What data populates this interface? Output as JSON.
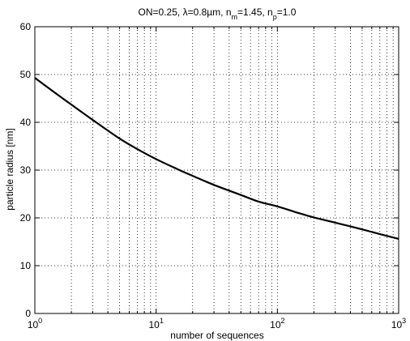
{
  "chart_data": {
    "type": "line",
    "title": {
      "parts": [
        {
          "text": "ON=0.25, "
        },
        {
          "text": "λ"
        },
        {
          "text": "=0.8µm, n"
        },
        {
          "text": "m",
          "sub": true
        },
        {
          "text": "=1.45, n"
        },
        {
          "text": "p",
          "sub": true
        },
        {
          "text": "=1.0"
        }
      ]
    },
    "xlabel": "number of sequences",
    "ylabel": "particle radius [nm]",
    "xscale": "log",
    "xlim": [
      1,
      1000
    ],
    "ylim": [
      0,
      60
    ],
    "grid": true,
    "x_ticks": [
      {
        "value": 1,
        "base": "10",
        "exp": "0"
      },
      {
        "value": 10,
        "base": "10",
        "exp": "1"
      },
      {
        "value": 100,
        "base": "10",
        "exp": "2"
      },
      {
        "value": 1000,
        "base": "10",
        "exp": "3"
      }
    ],
    "y_ticks": [
      0,
      10,
      20,
      30,
      40,
      50,
      60
    ],
    "series": [
      {
        "color": "#000000",
        "x": [
          1,
          1.5,
          2,
          3,
          5,
          7,
          10,
          15,
          20,
          30,
          50,
          70,
          100,
          150,
          200,
          300,
          500,
          700,
          1000
        ],
        "y": [
          49.3,
          46.0,
          43.7,
          40.5,
          36.6,
          34.4,
          32.3,
          30.2,
          28.8,
          26.9,
          24.8,
          23.4,
          22.4,
          21.0,
          20.1,
          19.0,
          17.6,
          16.6,
          15.6
        ]
      }
    ]
  }
}
